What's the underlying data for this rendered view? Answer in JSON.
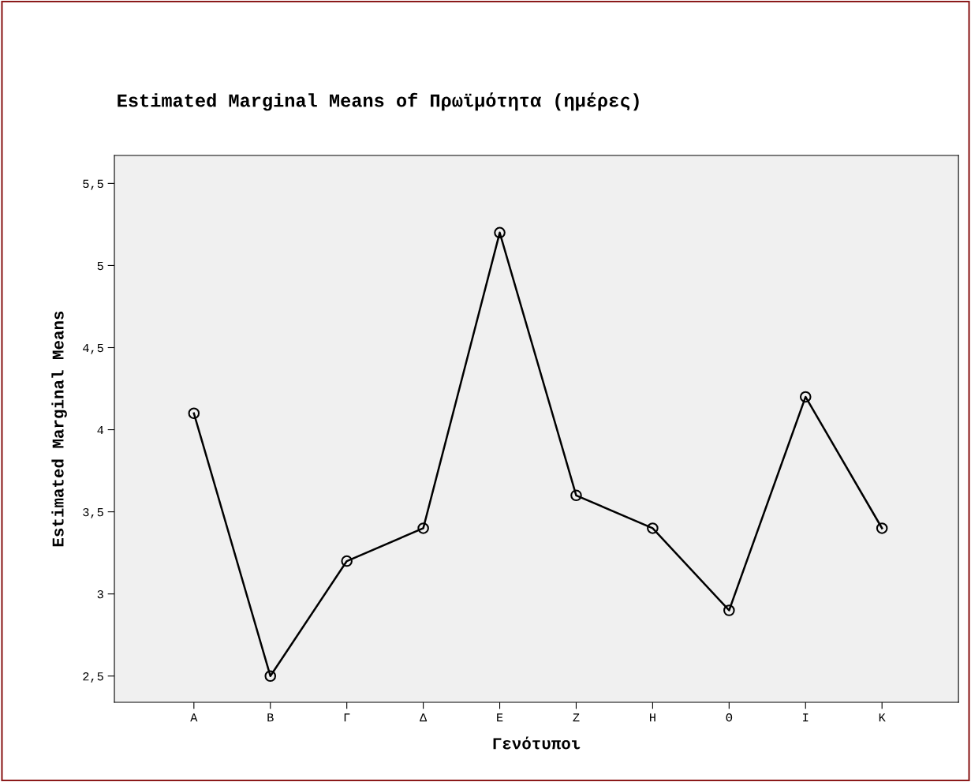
{
  "chart_data": {
    "type": "line",
    "title": "Estimated Marginal Means of Πρωϊμότητα (ημέρες)",
    "xlabel": "Γενότυποι",
    "ylabel": "Estimated Marginal Means",
    "categories": [
      "Α",
      "Β",
      "Γ",
      "Δ",
      "Ε",
      "Ζ",
      "Η",
      "Θ",
      "Ι",
      "Κ"
    ],
    "series": [
      {
        "color": "#000000",
        "values": [
          4.1,
          2.5,
          3.2,
          3.4,
          5.2,
          3.6,
          3.4,
          2.9,
          4.2,
          3.4
        ]
      }
    ],
    "ylim": [
      2.34,
      5.67
    ],
    "yticks": [
      {
        "value": 2.5,
        "label": "2,5"
      },
      {
        "value": 3,
        "label": "3"
      },
      {
        "value": 3.5,
        "label": "3,5"
      },
      {
        "value": 4,
        "label": "4"
      },
      {
        "value": 4.5,
        "label": "4,5"
      },
      {
        "value": 5,
        "label": "5"
      },
      {
        "value": 5.5,
        "label": "5,5"
      }
    ],
    "marker": "circle",
    "line_style": "solid"
  }
}
